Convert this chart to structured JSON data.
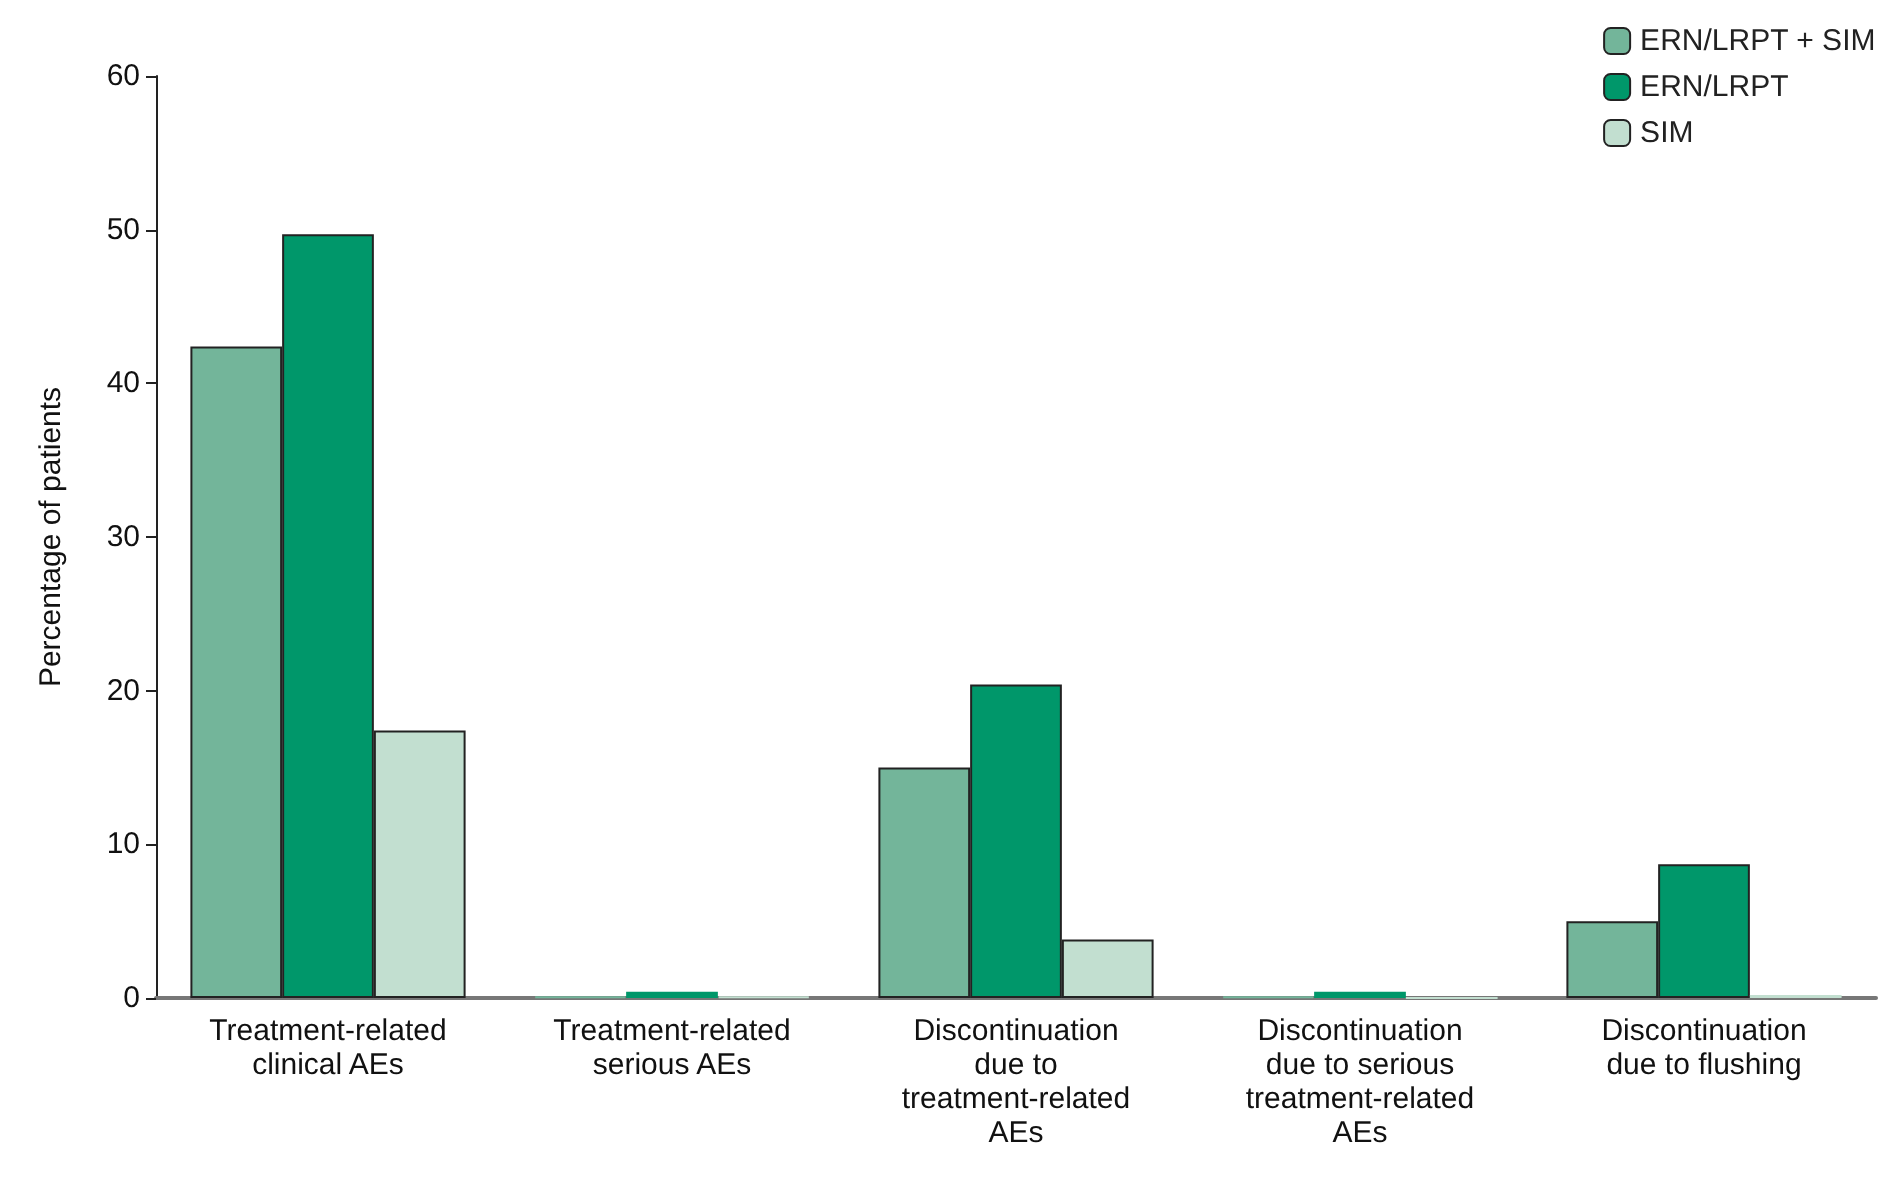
{
  "chart_data": {
    "type": "bar",
    "ylabel": "Percentage of patients",
    "categories": [
      "Treatment-related\nclinical AEs",
      "Treatment-related\nserious AEs",
      "Discontinuation\ndue to\ntreatment-related\nAEs",
      "Discontinuation\ndue to serious\ntreatment-related\nAEs",
      "Discontinuation\ndue to flushing"
    ],
    "series": [
      {
        "name": "ERN/LRPT + SIM",
        "color": "#73b59a",
        "values": [
          42.4,
          0.1,
          15.0,
          0.1,
          5.0
        ]
      },
      {
        "name": "ERN/LRPT",
        "color": "#00976a",
        "values": [
          49.7,
          0.4,
          20.4,
          0.4,
          8.7
        ]
      },
      {
        "name": "SIM",
        "color": "#c2dfd0",
        "values": [
          17.4,
          0.1,
          3.8,
          0,
          0.2
        ]
      }
    ],
    "ylim": [
      0,
      60
    ],
    "yticks": [
      0,
      10,
      20,
      30,
      40,
      50,
      60
    ],
    "grid": false,
    "legend": "top right"
  }
}
